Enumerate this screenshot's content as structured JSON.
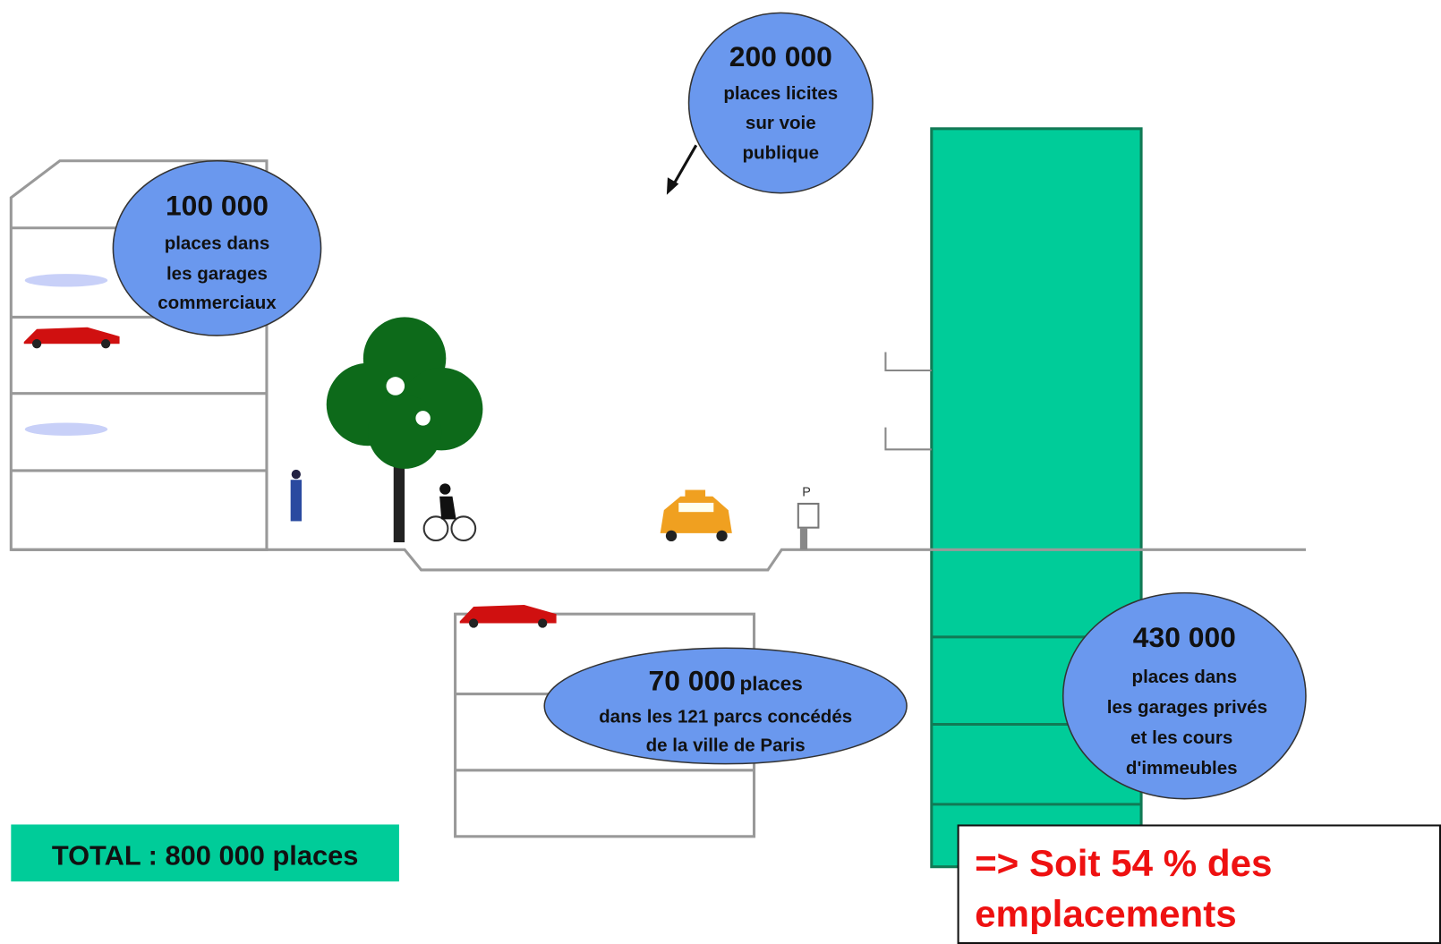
{
  "bubbles": [
    {
      "number": "200 000",
      "lines": [
        "places licites",
        "sur voie",
        "publique"
      ]
    },
    {
      "number": "100 000",
      "lines": [
        "places dans",
        "les garages",
        "commerciaux"
      ]
    },
    {
      "number": "70 000",
      "suffix": "places",
      "lines": [
        "dans les 121 parcs concédés",
        "de la ville de Paris"
      ]
    },
    {
      "number": "430 000",
      "lines": [
        "places dans",
        "les garages privés",
        "et les cours",
        "d'immeubles"
      ]
    }
  ],
  "total": "TOTAL : 800 000 places",
  "note": [
    "=> Soit 54 % des",
    "emplacements"
  ],
  "meter_label": "P"
}
